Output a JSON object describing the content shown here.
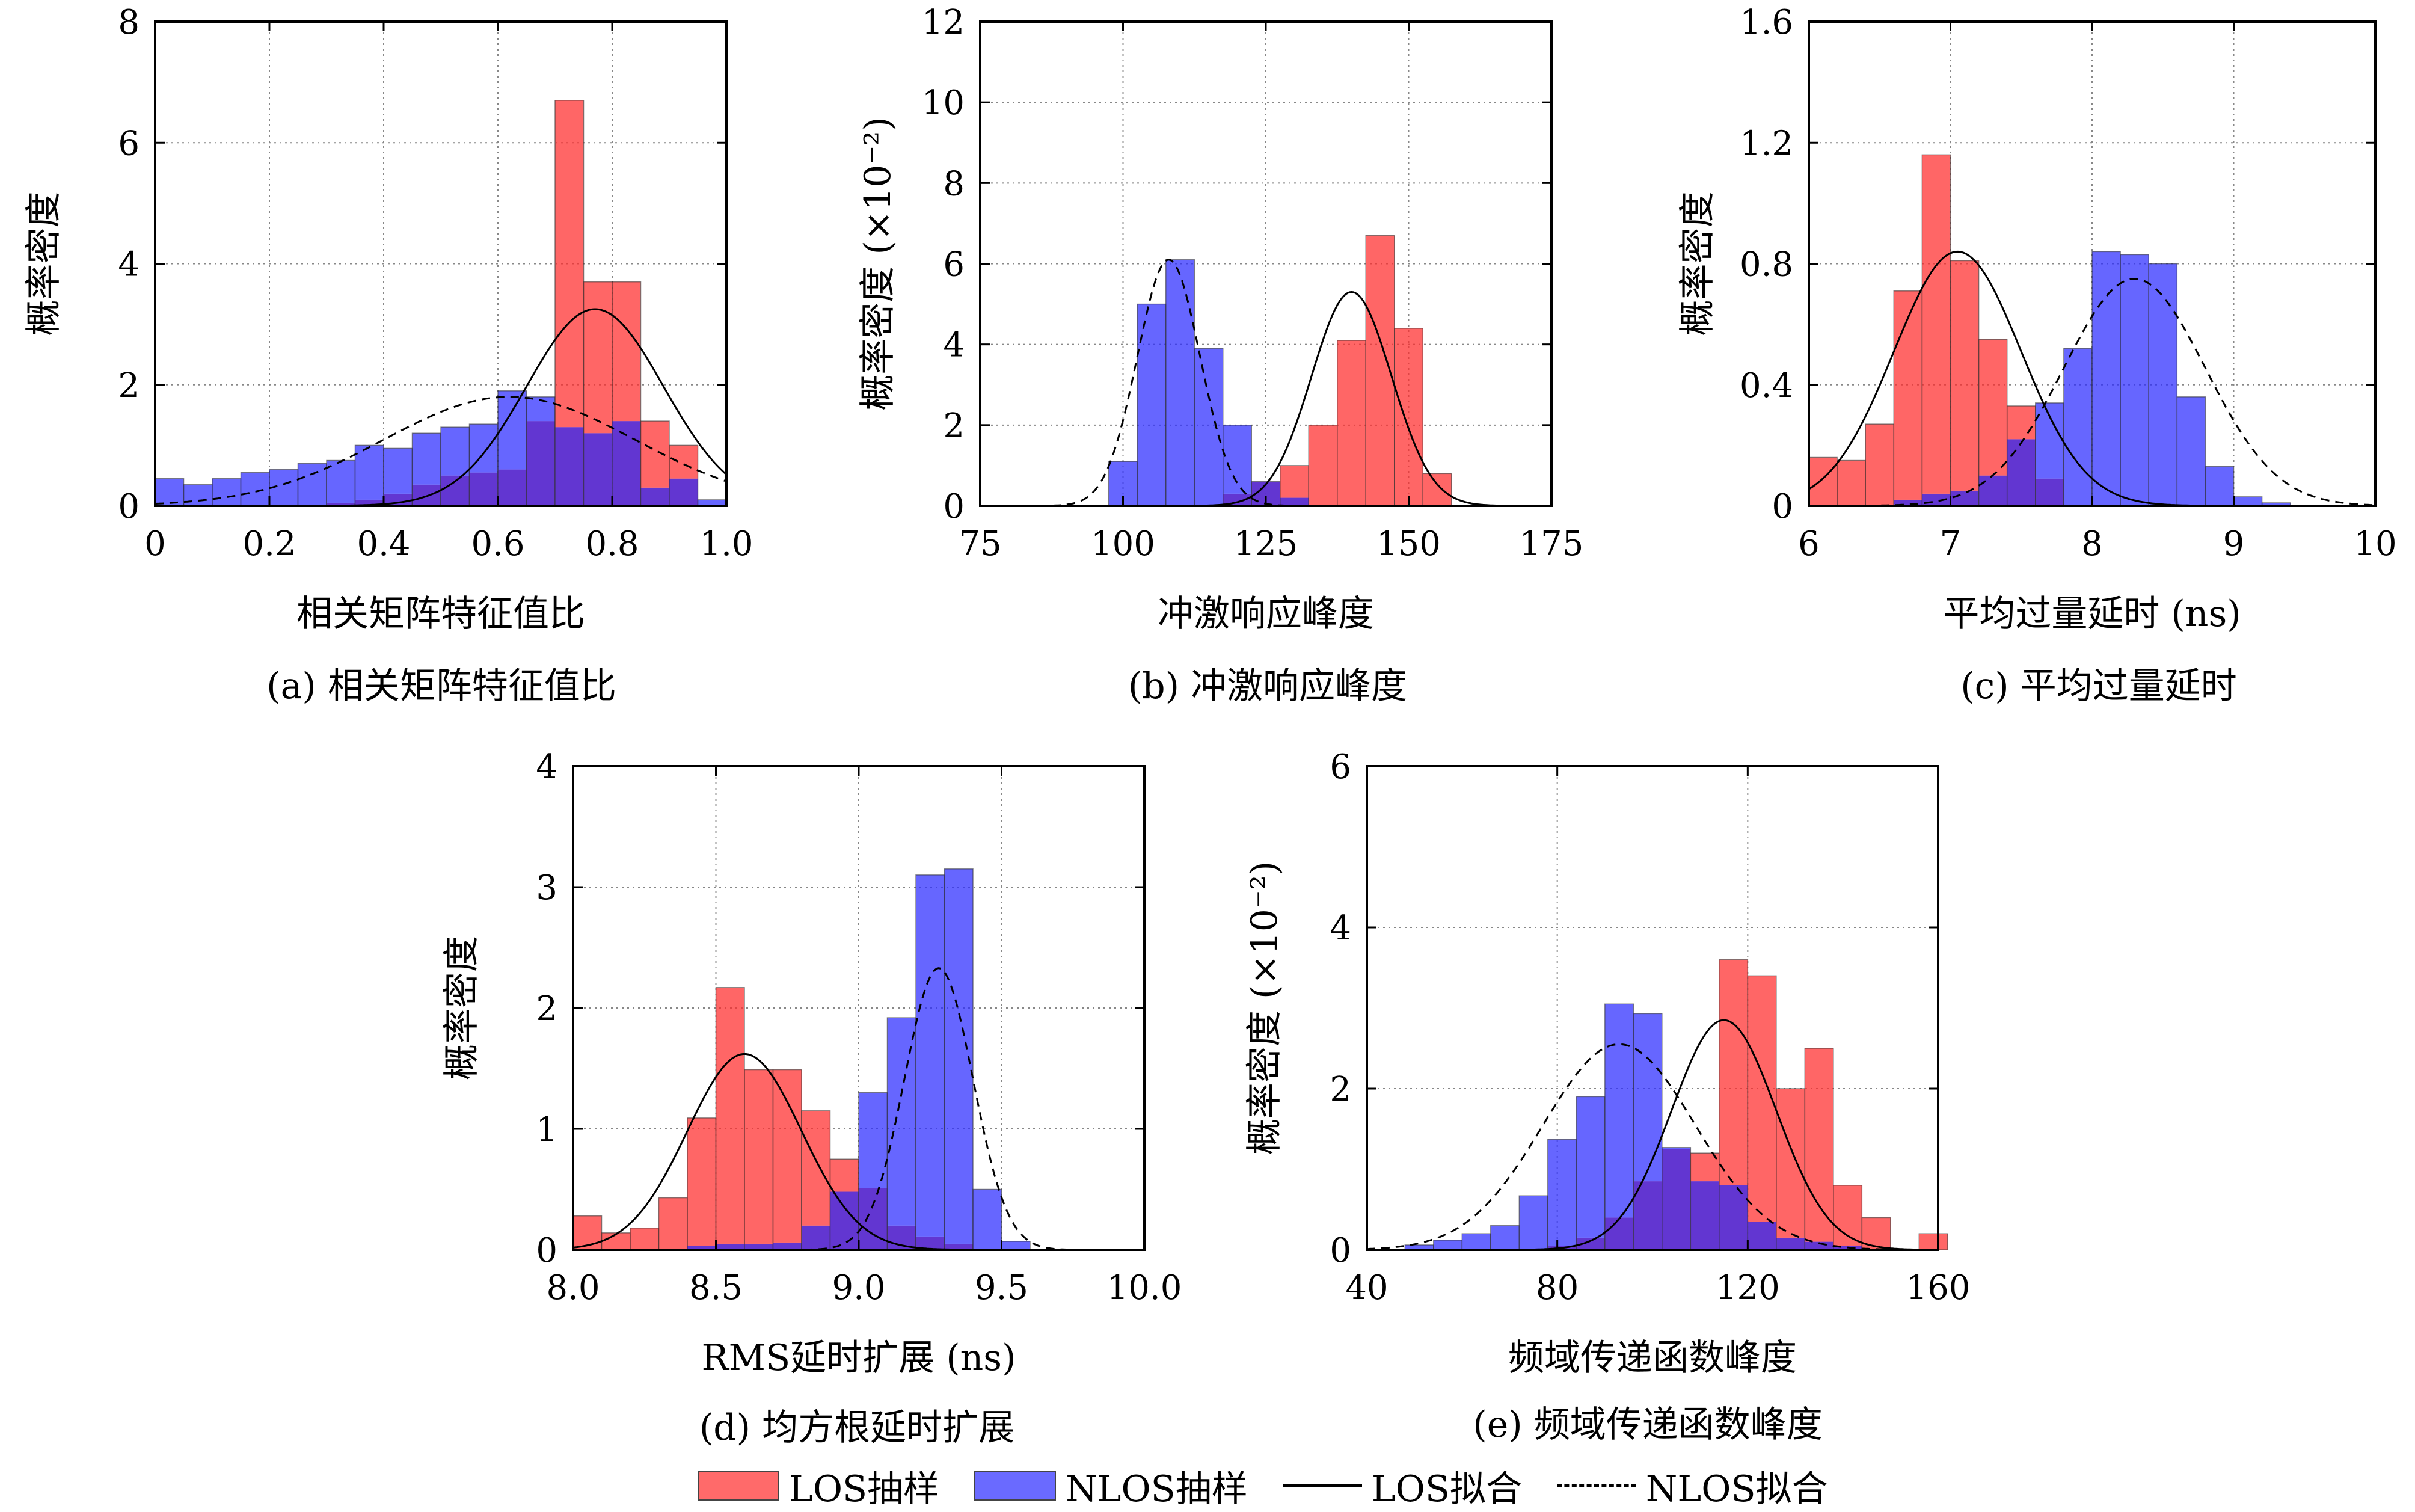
{
  "colors": {
    "los": "#ff2b2b",
    "nlos": "#2b2bff",
    "overlap": "#5a2bcf",
    "grid": "#888888"
  },
  "legend": {
    "los_sample": "LOS抽样",
    "nlos_sample": "NLOS抽样",
    "los_fit": "LOS拟合",
    "nlos_fit": "NLOS拟合"
  },
  "captions": {
    "a": "(a) 相关矩阵特征值比",
    "b": "(b) 冲激响应峰度",
    "c": "(c) 平均过量延时",
    "d": "(d) 均方根延时扩展",
    "e": "(e) 频域传递函数峰度"
  },
  "chart_data": [
    {
      "id": "a",
      "type": "bar",
      "xlabel": "相关矩阵特征值比",
      "ylabel": "概率密度",
      "ylabel_exp": "",
      "xlim": [
        0,
        1.0
      ],
      "ylim": [
        0,
        8
      ],
      "xticks": [
        0,
        0.2,
        0.4,
        0.6,
        0.8,
        1.0
      ],
      "xtick_labels": [
        "0",
        "0.2",
        "0.4",
        "0.6",
        "0.8",
        "1.0"
      ],
      "yticks": [
        0,
        2,
        4,
        6,
        8
      ],
      "ytick_labels": [
        "0",
        "2",
        "4",
        "6",
        "8"
      ],
      "bin_start": 0,
      "bin_width": 0.05,
      "series": [
        {
          "name": "LOS抽样",
          "values": [
            0,
            0,
            0,
            0,
            0,
            0,
            0.05,
            0.1,
            0.2,
            0.35,
            0.5,
            0.55,
            0.6,
            1.4,
            6.7,
            3.7,
            3.7,
            1.4,
            1.0,
            0
          ]
        },
        {
          "name": "NLOS抽样",
          "values": [
            0.45,
            0.35,
            0.45,
            0.55,
            0.6,
            0.7,
            0.75,
            1.0,
            0.95,
            1.2,
            1.3,
            1.35,
            1.9,
            1.8,
            1.3,
            1.2,
            1.4,
            0.3,
            0.45,
            0.1
          ]
        }
      ],
      "fits": [
        {
          "name": "LOS拟合",
          "mu": 0.77,
          "sigma": 0.12,
          "peak": 3.25
        },
        {
          "name": "NLOS拟合",
          "mu": 0.62,
          "sigma": 0.22,
          "peak": 1.8
        }
      ]
    },
    {
      "id": "b",
      "type": "bar",
      "xlabel": "冲激响应峰度",
      "ylabel": "概率密度",
      "ylabel_exp": "(×10⁻²)",
      "xlim": [
        75,
        175
      ],
      "ylim": [
        0,
        12
      ],
      "xticks": [
        75,
        100,
        125,
        150,
        175
      ],
      "xtick_labels": [
        "75",
        "100",
        "125",
        "150",
        "175"
      ],
      "yticks": [
        0,
        2,
        4,
        6,
        8,
        10,
        12
      ],
      "ytick_labels": [
        "0",
        "2",
        "4",
        "6",
        "8",
        "10",
        "12"
      ],
      "bin_start": 97.5,
      "bin_width": 5,
      "series": [
        {
          "name": "LOS抽样",
          "values": [
            0,
            0,
            0,
            0,
            0.3,
            0.6,
            1.0,
            2.0,
            4.1,
            6.7,
            4.4,
            0.8
          ]
        },
        {
          "name": "NLOS抽样",
          "values": [
            1.1,
            5.0,
            6.1,
            3.9,
            2.0,
            0.6,
            0.2,
            0,
            0,
            0,
            0,
            0
          ]
        }
      ],
      "fits": [
        {
          "name": "LOS拟合",
          "mu": 140,
          "sigma": 7,
          "peak": 5.3
        },
        {
          "name": "NLOS拟合",
          "mu": 108,
          "sigma": 5.5,
          "peak": 6.1
        }
      ]
    },
    {
      "id": "c",
      "type": "bar",
      "xlabel": "平均过量延时 (ns)",
      "ylabel": "概率密度",
      "ylabel_exp": "",
      "xlim": [
        6,
        10
      ],
      "ylim": [
        0,
        1.6
      ],
      "xticks": [
        6,
        7,
        8,
        9,
        10
      ],
      "xtick_labels": [
        "6",
        "7",
        "8",
        "9",
        "10"
      ],
      "yticks": [
        0,
        0.4,
        0.8,
        1.2,
        1.6
      ],
      "ytick_labels": [
        "0",
        "0.4",
        "0.8",
        "1.2",
        "1.6"
      ],
      "bin_start": 6,
      "bin_width": 0.2,
      "series": [
        {
          "name": "LOS拟合",
          "values": []
        },
        {
          "name": "LOS抽样",
          "values": [
            0.16,
            0.15,
            0.27,
            0.71,
            1.16,
            0.81,
            0.55,
            0.33,
            0.09,
            0,
            0,
            0,
            0,
            0,
            0,
            0,
            0,
            0
          ]
        },
        {
          "name": "NLOS抽样",
          "values": [
            0,
            0,
            0,
            0.02,
            0.04,
            0.05,
            0.1,
            0.22,
            0.34,
            0.52,
            0.84,
            0.83,
            0.8,
            0.36,
            0.13,
            0.03,
            0.01,
            0
          ]
        }
      ],
      "fits": [
        {
          "name": "LOS拟合",
          "mu": 7.05,
          "sigma": 0.45,
          "peak": 0.84
        },
        {
          "name": "NLOS拟合",
          "mu": 8.3,
          "sigma": 0.5,
          "peak": 0.75
        }
      ]
    },
    {
      "id": "d",
      "type": "bar",
      "xlabel": "RMS延时扩展 (ns)",
      "ylabel": "概率密度",
      "ylabel_exp": "",
      "xlim": [
        8.0,
        10.0
      ],
      "ylim": [
        0,
        4
      ],
      "xticks": [
        8.0,
        8.5,
        9.0,
        9.5,
        10.0
      ],
      "xtick_labels": [
        "8.0",
        "8.5",
        "9.0",
        "9.5",
        "10.0"
      ],
      "yticks": [
        0,
        1,
        2,
        3,
        4
      ],
      "ytick_labels": [
        "0",
        "1",
        "2",
        "3",
        "4"
      ],
      "bin_start": 8.0,
      "bin_width": 0.1,
      "series": [
        {
          "name": "LOS抽样",
          "values": [
            0.28,
            0.14,
            0.18,
            0.43,
            1.09,
            2.17,
            1.49,
            1.49,
            1.15,
            0.75,
            0.51,
            0.2,
            0.11,
            0.05,
            0,
            0,
            0,
            0,
            0,
            0
          ]
        },
        {
          "name": "NLOS抽样",
          "values": [
            0,
            0,
            0,
            0.01,
            0.03,
            0.05,
            0.05,
            0.06,
            0.2,
            0.48,
            1.3,
            1.92,
            3.1,
            3.15,
            0.5,
            0.07,
            0,
            0,
            0,
            0
          ]
        }
      ],
      "fits": [
        {
          "name": "LOS拟合",
          "mu": 8.6,
          "sigma": 0.2,
          "peak": 1.62
        },
        {
          "name": "NLOS拟合",
          "mu": 9.28,
          "sigma": 0.12,
          "peak": 2.33
        }
      ]
    },
    {
      "id": "e",
      "type": "bar",
      "xlabel": "频域传递函数峰度",
      "ylabel": "概率密度",
      "ylabel_exp": "(×10⁻²)",
      "xlim": [
        40,
        160
      ],
      "ylim": [
        0,
        6
      ],
      "xticks": [
        40,
        80,
        120,
        160
      ],
      "xtick_labels": [
        "40",
        "80",
        "120",
        "160"
      ],
      "yticks": [
        0,
        2,
        4,
        6
      ],
      "ytick_labels": [
        "0",
        "2",
        "4",
        "6"
      ],
      "bin_start": 48,
      "bin_width": 6,
      "series": [
        {
          "name": "LOS抽样",
          "values": [
            0,
            0,
            0,
            0,
            0,
            0.05,
            0.15,
            0.4,
            0.85,
            1.25,
            1.2,
            3.6,
            3.4,
            2.0,
            2.5,
            0.8,
            0.4,
            0,
            0.2
          ]
        },
        {
          "name": "NLOS抽样",
          "values": [
            0.06,
            0.12,
            0.2,
            0.3,
            0.67,
            1.37,
            1.9,
            3.05,
            2.93,
            1.27,
            0.85,
            0.8,
            0.35,
            0.15,
            0.1,
            0.05,
            0,
            0,
            0
          ]
        }
      ],
      "fits": [
        {
          "name": "LOS拟合",
          "mu": 115,
          "sigma": 11,
          "peak": 2.85
        },
        {
          "name": "NLOS拟合",
          "mu": 93,
          "sigma": 16,
          "peak": 2.55
        }
      ]
    }
  ]
}
